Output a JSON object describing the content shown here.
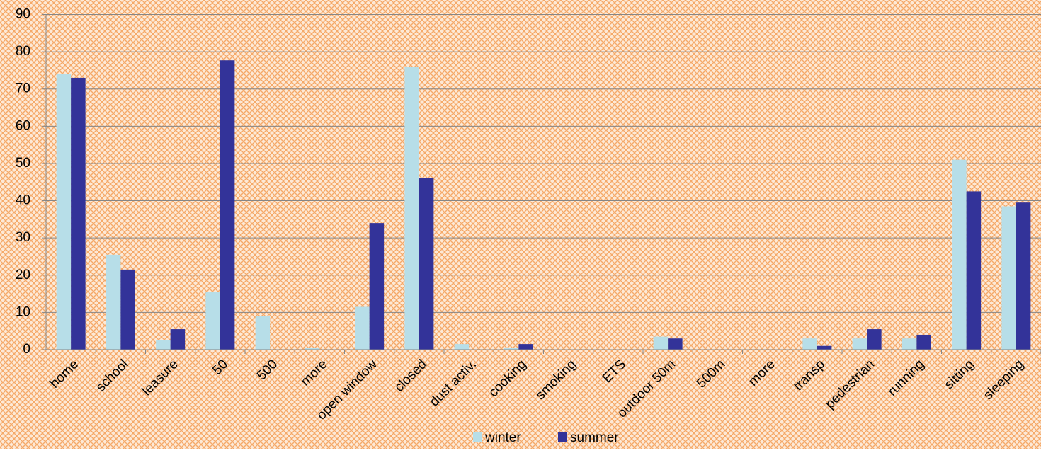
{
  "chart_data": {
    "type": "bar",
    "categories": [
      "home",
      "school",
      "leasure",
      "50",
      "500",
      "more",
      "open window",
      "closed",
      "dust activ.",
      "cooking",
      "smoking",
      "ETS",
      "outdoor 50m",
      "500m",
      "more",
      "transp",
      "pedestrian",
      "running",
      "sitting",
      "sleeping"
    ],
    "series": [
      {
        "name": "winter",
        "color": "#b7dee8",
        "values": [
          74,
          25.5,
          2.5,
          15.5,
          9,
          0.5,
          11.5,
          76,
          1.5,
          0.5,
          0,
          0,
          3.5,
          0,
          0,
          3,
          3,
          3,
          51,
          38.5
        ]
      },
      {
        "name": "summer",
        "color": "#333399",
        "values": [
          73,
          21.5,
          5.5,
          77.7,
          0,
          0,
          34,
          46,
          0,
          1.5,
          0,
          0,
          3,
          0,
          0,
          1,
          5.5,
          4,
          42.5,
          39.5
        ]
      }
    ],
    "ylim": [
      0,
      90
    ],
    "yticks": [
      0,
      10,
      20,
      30,
      40,
      50,
      60,
      70,
      80,
      90
    ],
    "grid": true,
    "legend": "bottom"
  }
}
